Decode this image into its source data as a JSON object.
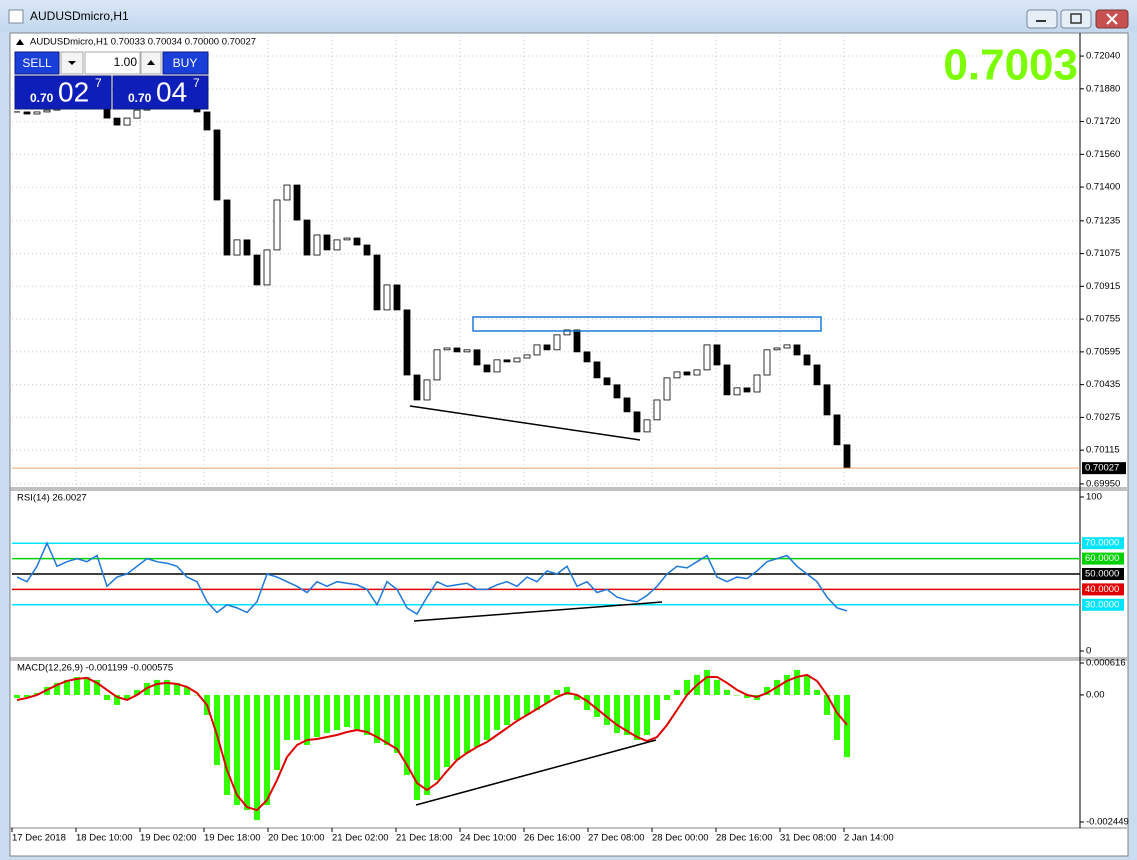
{
  "window": {
    "title": "AUDUSDmicro,H1"
  },
  "trade_panel": {
    "sell": "SELL",
    "lot": "1.00",
    "buy": "BUY",
    "bid": {
      "prefix": "0.70",
      "big": "02",
      "pip": "7"
    },
    "ask": {
      "prefix": "0.70",
      "big": "04",
      "pip": "7"
    }
  },
  "big_price": "0.7003",
  "time_labels": [
    "17 Dec 2018",
    "18 Dec 10:00",
    "19 Dec 02:00",
    "19 Dec 18:00",
    "20 Dec 10:00",
    "21 Dec 02:00",
    "21 Dec 18:00",
    "24 Dec 10:00",
    "26 Dec 16:00",
    "27 Dec 08:00",
    "28 Dec 00:00",
    "28 Dec 16:00",
    "31 Dec 08:00",
    "2 Jan 14:00"
  ],
  "chart_data": [
    {
      "type": "candlestick",
      "title": "AUDUSDmicro,H1  0.70033 0.70034 0.70000 0.70027",
      "up_color": "#ffffff",
      "down_color": "#000000",
      "grid": true,
      "values": [
        0.71767,
        0.71757,
        0.71767,
        0.71776,
        0.71801,
        0.71825,
        0.71835,
        0.71815,
        0.71786,
        0.71737,
        0.71703,
        0.71737,
        0.71776,
        0.71801,
        0.71815,
        0.71825,
        0.71805,
        0.71786,
        0.71767,
        0.71679,
        0.71337,
        0.71068,
        0.71142,
        0.71068,
        0.70922,
        0.71093,
        0.71337,
        0.7141,
        0.71239,
        0.71068,
        0.71166,
        0.71093,
        0.71142,
        0.71151,
        0.71117,
        0.71068,
        0.708,
        0.70922,
        0.708,
        0.70482,
        0.7036,
        0.70458,
        0.70605,
        0.70614,
        0.70595,
        0.70605,
        0.70531,
        0.70497,
        0.70556,
        0.70546,
        0.70565,
        0.7058,
        0.70629,
        0.70605,
        0.70678,
        0.70702,
        0.70595,
        0.70546,
        0.70468,
        0.70434,
        0.7037,
        0.70302,
        0.70204,
        0.70263,
        0.7036,
        0.70468,
        0.70497,
        0.70482,
        0.70507,
        0.70629,
        0.70531,
        0.70385,
        0.70419,
        0.70399,
        0.70482,
        0.70605,
        0.70614,
        0.70629,
        0.7058,
        0.70531,
        0.70434,
        0.70287,
        0.70141,
        0.70027
      ],
      "ylim": [
        0.6993,
        0.72138
      ],
      "yticks": [
        {
          "value": 0.7204,
          "label": "0.72040"
        },
        {
          "value": 0.7188,
          "label": "0.71880"
        },
        {
          "value": 0.7172,
          "label": "0.71720"
        },
        {
          "value": 0.7156,
          "label": "0.71560"
        },
        {
          "value": 0.714,
          "label": "0.71400"
        },
        0.71235,
        0.71075,
        0.70915,
        0.70755,
        0.70595,
        0.70435,
        0.70275,
        0.70115,
        {
          "value": 0.6995,
          "label": "0.69950"
        }
      ]
    },
    {
      "type": "line",
      "title": "RSI(14) 26.0027",
      "color": "#1e78d8",
      "values": [
        48,
        45,
        55,
        70,
        55,
        58,
        60,
        58,
        62,
        42,
        48,
        50,
        55,
        60,
        58,
        57,
        55,
        48,
        45,
        32,
        25,
        30,
        28,
        25,
        32,
        50,
        48,
        45,
        42,
        38,
        45,
        42,
        45,
        44,
        43,
        40,
        30,
        45,
        40,
        28,
        24,
        35,
        45,
        42,
        43,
        44,
        40,
        40,
        43,
        45,
        42,
        48,
        45,
        52,
        50,
        55,
        42,
        45,
        38,
        40,
        35,
        33,
        32,
        36,
        42,
        50,
        55,
        54,
        58,
        62,
        48,
        45,
        48,
        47,
        52,
        58,
        60,
        62,
        55,
        50,
        45,
        35,
        28,
        26.0027
      ],
      "ylim": [
        0,
        100
      ],
      "yticks": [
        0,
        100
      ],
      "levels": [
        {
          "value": 70,
          "label": "70.0000",
          "color": "#00e5ff"
        },
        {
          "value": 60,
          "label": "60.0000",
          "color": "#00d000"
        },
        {
          "value": 50,
          "label": "50.0000",
          "color": "#000000"
        },
        {
          "value": 40,
          "label": "40.0000",
          "color": "#e00000"
        },
        {
          "value": 30,
          "label": "30.0000",
          "color": "#00e5ff"
        }
      ]
    },
    {
      "type": "macd",
      "title": "MACD(12,26,9) -0.001199 -0.000575",
      "histogram_color": "#33ff00",
      "signal_color": "#e00000",
      "histogram": [
        -5.8e-05,
        -3.9e-05,
        3.9e-05,
        0.000154,
        0.000232,
        0.00029,
        0.000347,
        0.000347,
        0.00029,
        -9.7e-05,
        -0.000193,
        -9.7e-05,
        9.7e-05,
        0.000232,
        0.00029,
        0.00029,
        0.000232,
        0.000154,
        0,
        -0.000386,
        -0.001351,
        -0.00193,
        -0.002123,
        -0.00222,
        -0.002413,
        -0.002123,
        -0.001448,
        -0.000869,
        -0.000869,
        -0.000965,
        -0.000811,
        -0.000733,
        -0.000676,
        -0.000618,
        -0.000676,
        -0.000772,
        -0.000926,
        -0.000965,
        -0.001119,
        -0.001544,
        -0.002027,
        -0.00193,
        -0.001641,
        -0.00139,
        -0.001255,
        -0.001119,
        -0.001004,
        -0.000869,
        -0.000676,
        -0.000579,
        -0.000483,
        -0.000386,
        -0.00029,
        -0.000154,
        9.7e-05,
        0.000154,
        -9.7e-05,
        -0.00029,
        -0.000425,
        -0.000579,
        -0.000733,
        -0.000772,
        -0.000869,
        -0.000772,
        -0.000483,
        -9.7e-05,
        9.7e-05,
        0.00029,
        0.000386,
        0.000483,
        0.00029,
        9.7e-05,
        0,
        -5.8e-05,
        -9.7e-05,
        0.000154,
        0.00029,
        0.000386,
        0.000483,
        0.000386,
        9.7e-05,
        -0.000386,
        -0.000869,
        -0.001199
      ],
      "signal": [
        -9.7e-05,
        -5.8e-05,
        0,
        9.7e-05,
        0.000193,
        0.00027,
        0.000309,
        0.000328,
        0.000232,
        9.7e-05,
        -3.9e-05,
        -9.7e-05,
        0,
        0.000135,
        0.000212,
        0.000232,
        0.000212,
        0.000154,
        3.9e-05,
        -0.000193,
        -0.000772,
        -0.001448,
        -0.00193,
        -0.002162,
        -0.00222,
        -0.002027,
        -0.001641,
        -0.001197,
        -0.000965,
        -0.000869,
        -0.000849,
        -0.000811,
        -0.000772,
        -0.000714,
        -0.000676,
        -0.000714,
        -0.000811,
        -0.000926,
        -0.001042,
        -0.001351,
        -0.001698,
        -0.001834,
        -0.001698,
        -0.001467,
        -0.001255,
        -0.001119,
        -0.001004,
        -0.000907,
        -0.000772,
        -0.000637,
        -0.000502,
        -0.000386,
        -0.00027,
        -0.000154,
        -3.9e-05,
        3.9e-05,
        0,
        -0.000116,
        -0.00027,
        -0.000425,
        -0.000579,
        -0.000695,
        -0.000811,
        -0.000888,
        -0.000811,
        -0.000579,
        -0.00029,
        0,
        0.000193,
        0.000347,
        0.000347,
        0.000232,
        9.7e-05,
        0,
        -3.9e-05,
        3.9e-05,
        0.000154,
        0.00027,
        0.000347,
        0.000386,
        0.00027,
        0,
        -0.000347,
        -0.000575
      ],
      "ylim": [
        -0.002565,
        0.000616
      ],
      "yticks": [
        0.000616,
        {
          "value": 0,
          "label": "0.00"
        },
        -0.002449
      ]
    }
  ]
}
